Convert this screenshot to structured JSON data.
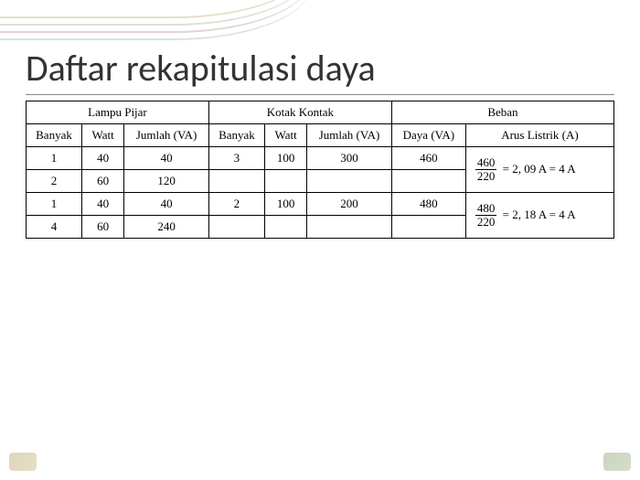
{
  "title": "Daftar rekapitulasi daya",
  "table": {
    "group_headers": [
      "Lampu Pijar",
      "Kotak Kontak",
      "Beban"
    ],
    "sub_headers": {
      "lampu": [
        "Banyak",
        "Watt",
        "Jumlah (VA)"
      ],
      "kotak": [
        "Banyak",
        "Watt",
        "Jumlah (VA)"
      ],
      "beban": [
        "Daya (VA)",
        "Arus Listrik (A)"
      ]
    },
    "rows": [
      {
        "lampu_banyak": "1",
        "lampu_watt": "40",
        "lampu_jumlah": "40",
        "kotak_banyak": "3",
        "kotak_watt": "100",
        "kotak_jumlah": "300",
        "daya": "460",
        "arus": {
          "num": "460",
          "den": "220",
          "rest": "= 2, 09 A = 4 A"
        }
      },
      {
        "lampu_banyak": "2",
        "lampu_watt": "60",
        "lampu_jumlah": "120",
        "kotak_banyak": "",
        "kotak_watt": "",
        "kotak_jumlah": "",
        "daya": "",
        "arus": null
      },
      {
        "lampu_banyak": "1",
        "lampu_watt": "40",
        "lampu_jumlah": "40",
        "kotak_banyak": "2",
        "kotak_watt": "100",
        "kotak_jumlah": "200",
        "daya": "480",
        "arus": {
          "num": "480",
          "den": "220",
          "rest": "= 2, 18 A = 4 A"
        }
      },
      {
        "lampu_banyak": "4",
        "lampu_watt": "60",
        "lampu_jumlah": "240",
        "kotak_banyak": "",
        "kotak_watt": "",
        "kotak_jumlah": "",
        "daya": "",
        "arus": null
      }
    ]
  },
  "colors": {
    "text": "#333333",
    "border": "#000000",
    "background": "#ffffff"
  },
  "typography": {
    "title_fontsize": 40,
    "table_fontsize": 13,
    "title_family": "Calibri",
    "table_family": "Times New Roman"
  }
}
